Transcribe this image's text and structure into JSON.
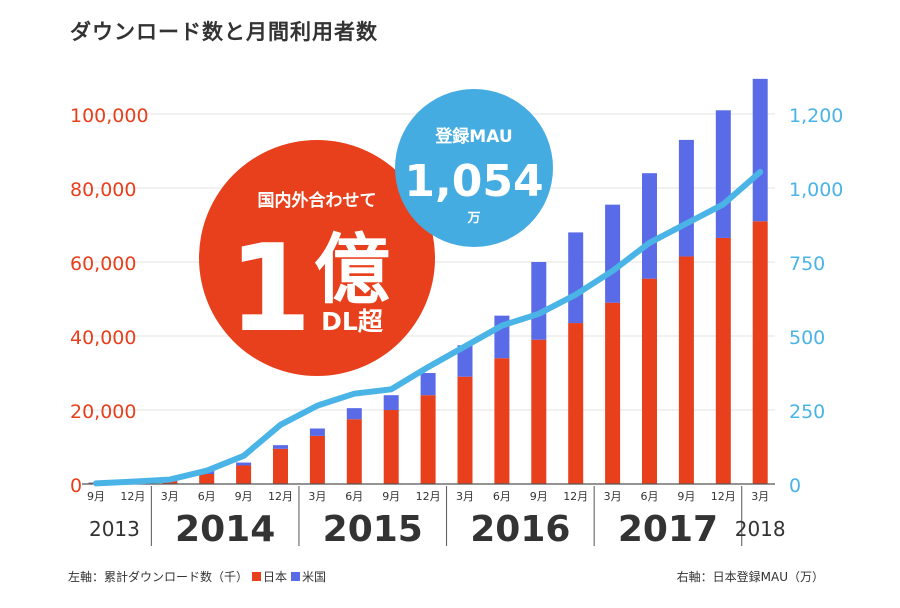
{
  "title": "ダウンロード数と月間利用者数",
  "chart_data": {
    "type": "bar",
    "stacked": true,
    "categories": [
      "2013-09",
      "2013-12",
      "2014-03",
      "2014-06",
      "2014-09",
      "2014-12",
      "2015-03",
      "2015-06",
      "2015-09",
      "2015-12",
      "2016-03",
      "2016-06",
      "2016-09",
      "2016-12",
      "2017-03",
      "2017-06",
      "2017-09",
      "2017-12",
      "2018-03"
    ],
    "month_labels": [
      "9月",
      "12月",
      "3月",
      "6月",
      "9月",
      "12月",
      "3月",
      "6月",
      "9月",
      "12月",
      "3月",
      "6月",
      "9月",
      "12月",
      "3月",
      "6月",
      "9月",
      "12月",
      "3月"
    ],
    "year_labels": [
      {
        "label": "2013",
        "size": "small"
      },
      {
        "label": "2014",
        "size": "large"
      },
      {
        "label": "2015",
        "size": "large"
      },
      {
        "label": "2016",
        "size": "large"
      },
      {
        "label": "2017",
        "size": "large"
      },
      {
        "label": "2018",
        "size": "small"
      }
    ],
    "year_groups": [
      [
        0,
        1
      ],
      [
        2,
        5
      ],
      [
        6,
        9
      ],
      [
        10,
        13
      ],
      [
        14,
        17
      ],
      [
        18,
        18
      ]
    ],
    "series": [
      {
        "name": "日本",
        "color": "#e8401c",
        "values": [
          300,
          700,
          1200,
          2700,
          5000,
          9500,
          13000,
          17500,
          20000,
          24000,
          29000,
          34000,
          39000,
          43500,
          49000,
          55500,
          61500,
          66500,
          71000
        ]
      },
      {
        "name": "米国",
        "color": "#5a6be8",
        "values": [
          100,
          200,
          300,
          800,
          800,
          1000,
          2000,
          3000,
          4000,
          6000,
          8500,
          11500,
          21000,
          24500,
          26500,
          28500,
          31500,
          34500,
          38500
        ]
      }
    ],
    "line": {
      "name": "日本登録MAU（万）",
      "color": "#4ab4e6",
      "values": [
        2,
        8,
        15,
        45,
        95,
        200,
        265,
        305,
        320,
        395,
        465,
        535,
        575,
        640,
        720,
        815,
        880,
        945,
        1054
      ]
    },
    "ylim_left": [
      0,
      100000
    ],
    "yticks_left": [
      "0",
      "20,000",
      "40,000",
      "60,000",
      "80,000",
      "100,000"
    ],
    "ylim_right": [
      0,
      1250
    ],
    "yticks_right": [
      "0",
      "250",
      "500",
      "750",
      "1,000",
      "1,200"
    ],
    "left_axis_color": "#e8401c",
    "right_axis_color": "#4ab4e6",
    "grid": true,
    "annotations": {
      "red_badge": {
        "line1": "国内外合わせて",
        "big_number": "1",
        "big_char": "億",
        "suffix": "DL超",
        "color": "#e8401c"
      },
      "blue_badge": {
        "label": "登録MAU",
        "value": "1,054",
        "unit": "万",
        "color": "#45ace2"
      }
    }
  },
  "footer": {
    "left_prefix": "左軸：累計ダウンロード数（千）",
    "legend_japan": "日本",
    "legend_us": "米国",
    "right": "右軸：日本登録MAU（万）"
  }
}
